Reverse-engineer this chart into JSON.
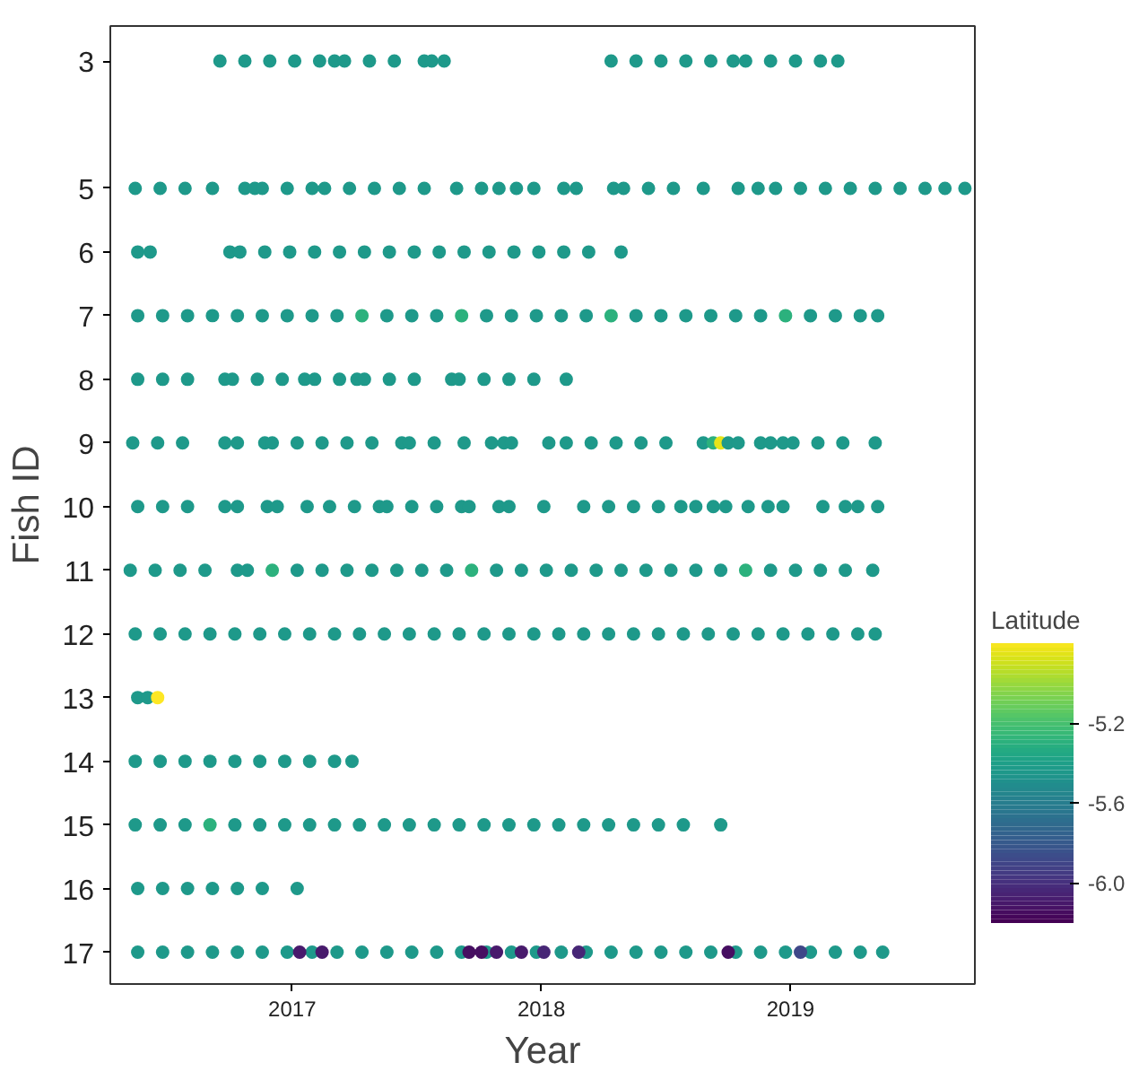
{
  "chart_data": {
    "type": "scatter",
    "xlabel": "Year",
    "ylabel": "Fish ID",
    "clabel": "Latitude",
    "ylim": [
      17.5,
      2.45
    ],
    "yticks": [
      3,
      5,
      6,
      7,
      8,
      9,
      10,
      11,
      12,
      13,
      14,
      15,
      16,
      17
    ],
    "xlim": [
      2016.27,
      2019.74
    ],
    "xticks": [
      2017,
      2018,
      2019
    ],
    "clim": [
      -6.2,
      -4.8
    ],
    "cticks": [
      {
        "value": -6.0,
        "label": "-6.0"
      },
      {
        "value": -5.6,
        "label": "-5.6"
      },
      {
        "value": -5.2,
        "label": "-5.2"
      }
    ],
    "grid": false,
    "marker": "circle",
    "x": [
      2016.71,
      2016.81,
      2016.91,
      2017.01,
      2017.11,
      2017.17,
      2017.21,
      2017.31,
      2017.41,
      2017.53,
      2017.56,
      2017.61,
      2018.28,
      2018.38,
      2018.48,
      2018.58,
      2018.68,
      2018.77,
      2018.82,
      2018.92,
      2019.02,
      2019.12,
      2019.19,
      2016.37,
      2016.47,
      2016.57,
      2016.68,
      2016.81,
      2016.85,
      2016.88,
      2016.98,
      2017.08,
      2017.13,
      2017.23,
      2017.33,
      2017.43,
      2017.53,
      2017.66,
      2017.76,
      2017.83,
      2017.9,
      2017.97,
      2018.09,
      2018.14,
      2018.29,
      2018.33,
      2018.43,
      2018.53,
      2018.65,
      2018.79,
      2018.87,
      2018.94,
      2019.04,
      2019.14,
      2019.24,
      2019.34,
      2019.44,
      2019.54,
      2019.62,
      2019.7,
      2016.38,
      2016.43,
      2016.75,
      2016.79,
      2016.89,
      2016.99,
      2017.09,
      2017.19,
      2017.29,
      2017.39,
      2017.49,
      2017.59,
      2017.69,
      2017.79,
      2017.89,
      2017.99,
      2018.09,
      2018.19,
      2018.32,
      2016.38,
      2016.48,
      2016.58,
      2016.68,
      2016.78,
      2016.88,
      2016.98,
      2017.08,
      2017.18,
      2017.28,
      2017.38,
      2017.48,
      2017.58,
      2017.68,
      2017.78,
      2017.88,
      2017.98,
      2018.08,
      2018.18,
      2018.28,
      2018.38,
      2018.48,
      2018.58,
      2018.68,
      2018.78,
      2018.88,
      2018.98,
      2019.08,
      2019.18,
      2019.28,
      2019.35,
      2016.38,
      2016.48,
      2016.58,
      2016.73,
      2016.76,
      2016.86,
      2016.96,
      2017.05,
      2017.09,
      2017.19,
      2017.26,
      2017.29,
      2017.39,
      2017.49,
      2017.64,
      2017.67,
      2017.77,
      2017.87,
      2017.97,
      2018.1,
      2016.36,
      2016.46,
      2016.56,
      2016.73,
      2016.78,
      2016.89,
      2016.92,
      2017.02,
      2017.12,
      2017.22,
      2017.32,
      2017.44,
      2017.47,
      2017.57,
      2017.69,
      2017.8,
      2017.85,
      2017.88,
      2018.03,
      2018.1,
      2018.2,
      2018.3,
      2018.4,
      2018.5,
      2018.65,
      2018.69,
      2018.72,
      2018.75,
      2018.79,
      2018.88,
      2018.92,
      2018.97,
      2019.01,
      2019.11,
      2019.21,
      2019.34,
      2016.38,
      2016.48,
      2016.58,
      2016.73,
      2016.78,
      2016.9,
      2016.94,
      2017.06,
      2017.15,
      2017.25,
      2017.35,
      2017.38,
      2017.48,
      2017.58,
      2017.68,
      2017.71,
      2017.83,
      2017.87,
      2018.01,
      2018.17,
      2018.27,
      2018.37,
      2018.47,
      2018.56,
      2018.62,
      2018.69,
      2018.74,
      2018.83,
      2018.91,
      2018.97,
      2019.13,
      2019.22,
      2019.27,
      2019.35,
      2016.35,
      2016.45,
      2016.55,
      2016.65,
      2016.78,
      2016.82,
      2016.92,
      2017.02,
      2017.12,
      2017.22,
      2017.32,
      2017.42,
      2017.52,
      2017.62,
      2017.72,
      2017.82,
      2017.92,
      2018.02,
      2018.12,
      2018.22,
      2018.32,
      2018.42,
      2018.52,
      2018.62,
      2018.72,
      2018.82,
      2018.92,
      2019.02,
      2019.12,
      2019.22,
      2019.33,
      2016.37,
      2016.47,
      2016.57,
      2016.67,
      2016.77,
      2016.87,
      2016.97,
      2017.07,
      2017.17,
      2017.27,
      2017.37,
      2017.47,
      2017.57,
      2017.67,
      2017.77,
      2017.87,
      2017.97,
      2018.07,
      2018.17,
      2018.27,
      2018.37,
      2018.47,
      2018.57,
      2018.67,
      2018.77,
      2018.87,
      2018.97,
      2019.07,
      2019.17,
      2019.27,
      2019.34,
      2016.38,
      2016.42,
      2016.46,
      2016.37,
      2016.47,
      2016.57,
      2016.67,
      2016.77,
      2016.87,
      2016.97,
      2017.07,
      2017.17,
      2017.24,
      2016.37,
      2016.47,
      2016.57,
      2016.67,
      2016.77,
      2016.87,
      2016.97,
      2017.07,
      2017.17,
      2017.27,
      2017.37,
      2017.47,
      2017.57,
      2017.67,
      2017.77,
      2017.87,
      2017.97,
      2018.07,
      2018.17,
      2018.27,
      2018.37,
      2018.47,
      2018.57,
      2018.72,
      2016.38,
      2016.48,
      2016.58,
      2016.68,
      2016.78,
      2016.88,
      2017.02,
      2016.38,
      2016.48,
      2016.58,
      2016.68,
      2016.78,
      2016.88,
      2016.98,
      2017.08,
      2017.18,
      2017.28,
      2017.38,
      2017.48,
      2017.58,
      2017.68,
      2017.78,
      2017.88,
      2017.98,
      2018.08,
      2018.18,
      2018.28,
      2018.38,
      2018.48,
      2018.58,
      2018.68,
      2018.78,
      2018.88,
      2018.98,
      2019.08,
      2019.18,
      2019.28,
      2019.37,
      2017.03,
      2017.12,
      2017.71,
      2017.76,
      2017.82,
      2017.92,
      2018.01,
      2018.15,
      2018.75,
      2019.04
    ],
    "values": [
      3,
      3,
      3,
      3,
      3,
      3,
      3,
      3,
      3,
      3,
      3,
      3,
      3,
      3,
      3,
      3,
      3,
      3,
      3,
      3,
      3,
      3,
      3,
      5,
      5,
      5,
      5,
      5,
      5,
      5,
      5,
      5,
      5,
      5,
      5,
      5,
      5,
      5,
      5,
      5,
      5,
      5,
      5,
      5,
      5,
      5,
      5,
      5,
      5,
      5,
      5,
      5,
      5,
      5,
      5,
      5,
      5,
      5,
      5,
      5,
      6,
      6,
      6,
      6,
      6,
      6,
      6,
      6,
      6,
      6,
      6,
      6,
      6,
      6,
      6,
      6,
      6,
      6,
      6,
      7,
      7,
      7,
      7,
      7,
      7,
      7,
      7,
      7,
      7,
      7,
      7,
      7,
      7,
      7,
      7,
      7,
      7,
      7,
      7,
      7,
      7,
      7,
      7,
      7,
      7,
      7,
      7,
      7,
      7,
      7,
      8,
      8,
      8,
      8,
      8,
      8,
      8,
      8,
      8,
      8,
      8,
      8,
      8,
      8,
      8,
      8,
      8,
      8,
      8,
      8,
      9,
      9,
      9,
      9,
      9,
      9,
      9,
      9,
      9,
      9,
      9,
      9,
      9,
      9,
      9,
      9,
      9,
      9,
      9,
      9,
      9,
      9,
      9,
      9,
      9,
      9,
      9,
      9,
      9,
      9,
      9,
      9,
      9,
      9,
      9,
      9,
      10,
      10,
      10,
      10,
      10,
      10,
      10,
      10,
      10,
      10,
      10,
      10,
      10,
      10,
      10,
      10,
      10,
      10,
      10,
      10,
      10,
      10,
      10,
      10,
      10,
      10,
      10,
      10,
      10,
      10,
      10,
      10,
      10,
      10,
      11,
      11,
      11,
      11,
      11,
      11,
      11,
      11,
      11,
      11,
      11,
      11,
      11,
      11,
      11,
      11,
      11,
      11,
      11,
      11,
      11,
      11,
      11,
      11,
      11,
      11,
      11,
      11,
      11,
      11,
      11,
      12,
      12,
      12,
      12,
      12,
      12,
      12,
      12,
      12,
      12,
      12,
      12,
      12,
      12,
      12,
      12,
      12,
      12,
      12,
      12,
      12,
      12,
      12,
      12,
      12,
      12,
      12,
      12,
      12,
      12,
      12,
      13,
      13,
      13,
      14,
      14,
      14,
      14,
      14,
      14,
      14,
      14,
      14,
      14,
      15,
      15,
      15,
      15,
      15,
      15,
      15,
      15,
      15,
      15,
      15,
      15,
      15,
      15,
      15,
      15,
      15,
      15,
      15,
      15,
      15,
      15,
      15,
      15,
      16,
      16,
      16,
      16,
      16,
      16,
      16,
      17,
      17,
      17,
      17,
      17,
      17,
      17,
      17,
      17,
      17,
      17,
      17,
      17,
      17,
      17,
      17,
      17,
      17,
      17,
      17,
      17,
      17,
      17,
      17,
      17,
      17,
      17,
      17,
      17,
      17,
      17,
      17,
      17,
      17,
      17,
      17,
      17,
      17,
      17,
      17,
      17
    ],
    "cvalues": [
      -5.45,
      -5.45,
      -5.45,
      -5.45,
      -5.45,
      -5.45,
      -5.45,
      -5.45,
      -5.45,
      -5.45,
      -5.45,
      -5.45,
      -5.45,
      -5.45,
      -5.45,
      -5.45,
      -5.45,
      -5.45,
      -5.45,
      -5.45,
      -5.45,
      -5.45,
      -5.45,
      -5.45,
      -5.45,
      -5.45,
      -5.45,
      -5.45,
      -5.45,
      -5.45,
      -5.45,
      -5.45,
      -5.45,
      -5.45,
      -5.45,
      -5.45,
      -5.45,
      -5.45,
      -5.45,
      -5.45,
      -5.45,
      -5.45,
      -5.45,
      -5.45,
      -5.45,
      -5.45,
      -5.45,
      -5.45,
      -5.45,
      -5.45,
      -5.45,
      -5.45,
      -5.45,
      -5.45,
      -5.45,
      -5.45,
      -5.45,
      -5.45,
      -5.45,
      -5.45,
      -5.45,
      -5.45,
      -5.45,
      -5.45,
      -5.45,
      -5.45,
      -5.45,
      -5.45,
      -5.45,
      -5.45,
      -5.45,
      -5.45,
      -5.45,
      -5.45,
      -5.45,
      -5.45,
      -5.45,
      -5.45,
      -5.45,
      -5.45,
      -5.45,
      -5.45,
      -5.45,
      -5.45,
      -5.45,
      -5.45,
      -5.45,
      -5.45,
      -5.3,
      -5.45,
      -5.45,
      -5.45,
      -5.3,
      -5.45,
      -5.45,
      -5.45,
      -5.45,
      -5.45,
      -5.3,
      -5.45,
      -5.45,
      -5.45,
      -5.45,
      -5.45,
      -5.45,
      -5.3,
      -5.45,
      -5.45,
      -5.45,
      -5.45,
      -5.45,
      -5.45,
      -5.45,
      -5.45,
      -5.45,
      -5.45,
      -5.45,
      -5.45,
      -5.45,
      -5.45,
      -5.45,
      -5.45,
      -5.45,
      -5.45,
      -5.45,
      -5.45,
      -5.45,
      -5.45,
      -5.45,
      -5.45,
      -5.45,
      -5.45,
      -5.45,
      -5.45,
      -5.45,
      -5.45,
      -5.45,
      -5.45,
      -5.45,
      -5.45,
      -5.45,
      -5.45,
      -5.45,
      -5.45,
      -5.45,
      -5.45,
      -5.45,
      -5.45,
      -5.45,
      -5.45,
      -5.45,
      -5.45,
      -5.45,
      -5.45,
      -5.45,
      -5.3,
      -4.85,
      -5.45,
      -5.45,
      -5.45,
      -5.45,
      -5.45,
      -5.45,
      -5.45,
      -5.45,
      -5.45,
      -5.45,
      -5.45,
      -5.45,
      -5.45,
      -5.45,
      -5.45,
      -5.45,
      -5.45,
      -5.45,
      -5.45,
      -5.45,
      -5.45,
      -5.45,
      -5.45,
      -5.45,
      -5.45,
      -5.45,
      -5.45,
      -5.45,
      -5.45,
      -5.45,
      -5.45,
      -5.45,
      -5.45,
      -5.45,
      -5.45,
      -5.45,
      -5.45,
      -5.45,
      -5.45,
      -5.45,
      -5.45,
      -5.45,
      -5.45,
      -5.45,
      -5.45,
      -5.45,
      -5.45,
      -5.45,
      -5.45,
      -5.3,
      -5.45,
      -5.45,
      -5.45,
      -5.45,
      -5.45,
      -5.45,
      -5.45,
      -5.3,
      -5.45,
      -5.45,
      -5.45,
      -5.45,
      -5.45,
      -5.45,
      -5.45,
      -5.45,
      -5.45,
      -5.45,
      -5.3,
      -5.45,
      -5.45,
      -5.45,
      -5.45,
      -5.45,
      -5.45,
      -5.45,
      -5.45,
      -5.45,
      -5.45,
      -5.45,
      -5.45,
      -5.45,
      -5.45,
      -5.45,
      -5.45,
      -5.45,
      -5.45,
      -5.45,
      -5.45,
      -5.45,
      -5.45,
      -5.45,
      -5.45,
      -5.45,
      -5.45,
      -5.45,
      -5.45,
      -5.45,
      -5.45,
      -5.45,
      -5.45,
      -5.45,
      -5.45,
      -5.45,
      -5.45,
      -5.45,
      -5.45,
      -4.8,
      -5.45,
      -5.45,
      -5.45,
      -5.45,
      -5.45,
      -5.45,
      -5.45,
      -5.45,
      -5.45,
      -5.45,
      -5.45,
      -5.45,
      -5.45,
      -5.3,
      -5.45,
      -5.45,
      -5.45,
      -5.45,
      -5.45,
      -5.45,
      -5.45,
      -5.45,
      -5.45,
      -5.45,
      -5.45,
      -5.45,
      -5.45,
      -5.45,
      -5.45,
      -5.45,
      -5.45,
      -5.45,
      -5.45,
      -5.45,
      -5.45,
      -5.45,
      -5.45,
      -5.45,
      -5.45,
      -5.45,
      -5.45,
      -5.45,
      -5.45,
      -5.45,
      -5.45,
      -5.45,
      -5.45,
      -5.45,
      -5.45,
      -5.45,
      -5.45,
      -5.45,
      -5.45,
      -5.45,
      -5.45,
      -5.45,
      -5.45,
      -5.45,
      -5.45,
      -5.45,
      -5.45,
      -5.45,
      -5.45,
      -5.45,
      -5.45,
      -5.45,
      -5.45,
      -5.45,
      -5.45,
      -5.45,
      -5.45,
      -5.45,
      -6.1,
      -6.1,
      -6.15,
      -6.15,
      -6.1,
      -6.1,
      -6.05,
      -6.05,
      -6.15,
      -5.9
    ]
  }
}
